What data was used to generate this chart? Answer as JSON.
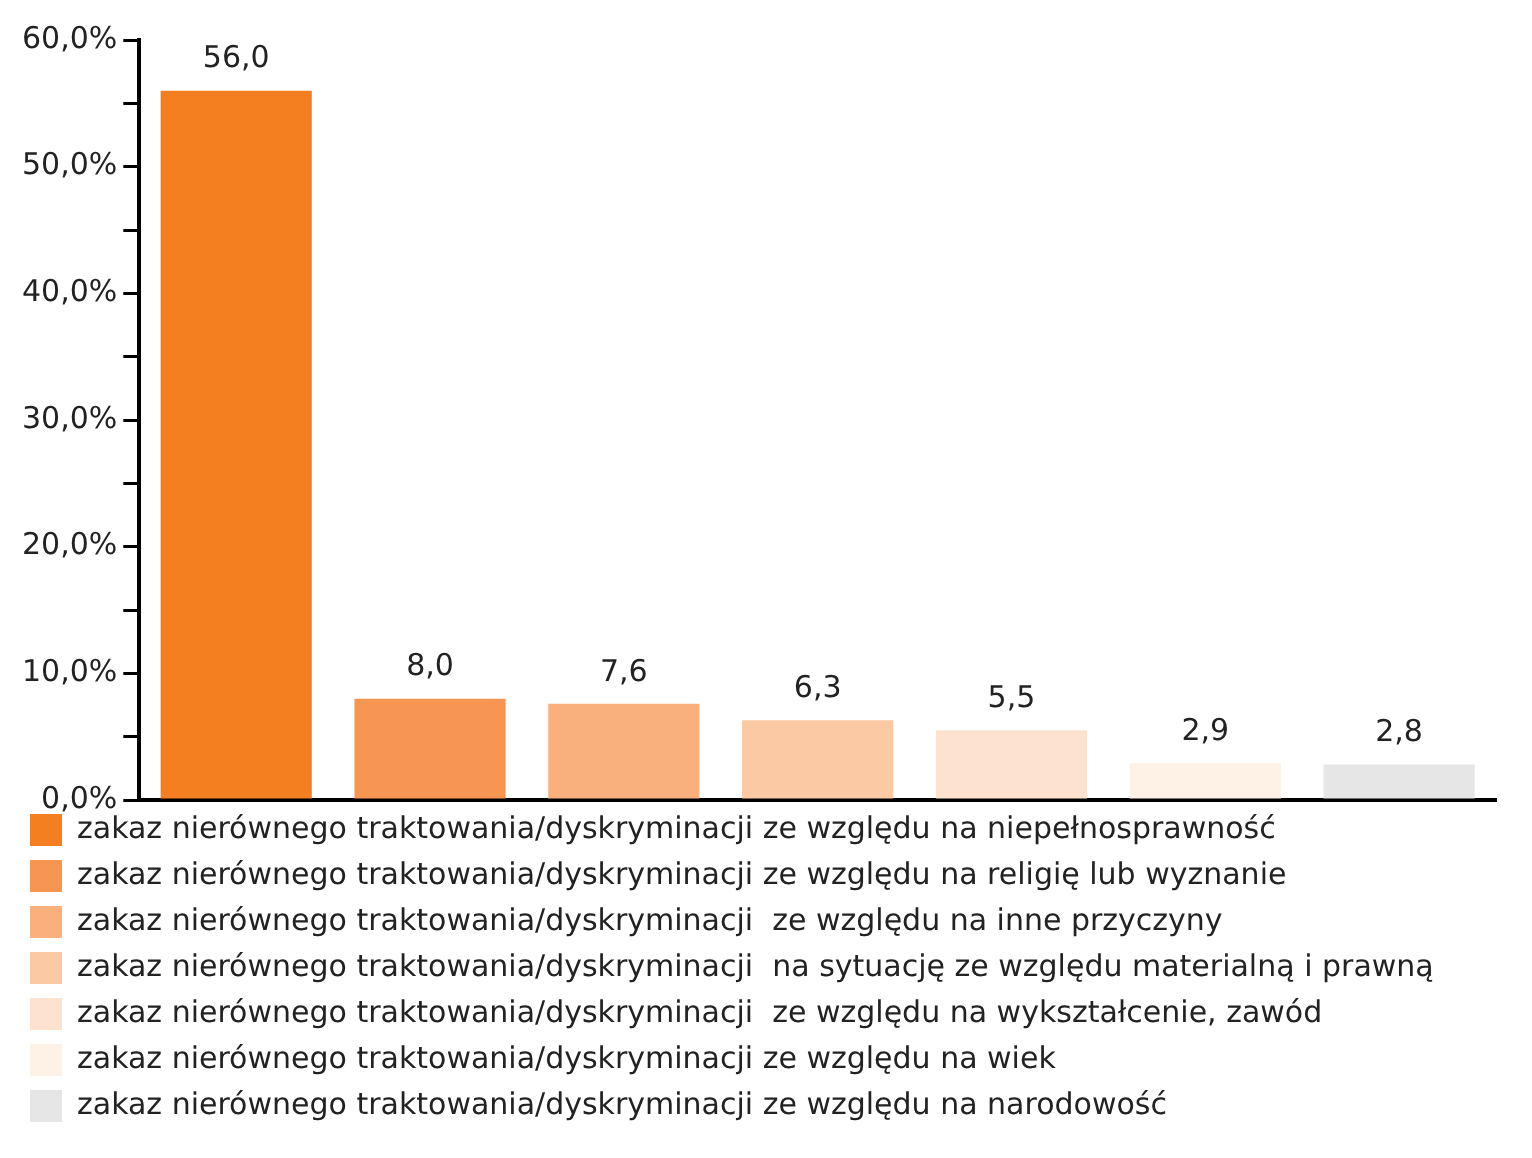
{
  "chart_data": {
    "type": "bar",
    "categories": [
      null,
      null,
      null,
      null,
      null,
      null,
      null
    ],
    "series": [
      {
        "name": "zakaz nierównego traktowania/dyskryminacji ze względu na niepełnosprawność",
        "color": "#f47f20",
        "values": [
          56.0,
          null,
          null,
          null,
          null,
          null,
          null
        ],
        "value_labels": [
          "56,0",
          null,
          null,
          null,
          null,
          null,
          null
        ]
      },
      {
        "name": "zakaz nierównego traktowania/dyskryminacji ze względu na religię lub wyznanie",
        "color": "#f79552",
        "values": [
          null,
          8.0,
          null,
          null,
          null,
          null,
          null
        ],
        "value_labels": [
          null,
          "8,0",
          null,
          null,
          null,
          null,
          null
        ]
      },
      {
        "name": "zakaz nierównego traktowania/dyskryminacji  ze względu na inne przyczyny",
        "color": "#f9b07c",
        "values": [
          null,
          null,
          7.6,
          null,
          null,
          null,
          null
        ],
        "value_labels": [
          null,
          null,
          "7,6",
          null,
          null,
          null,
          null
        ]
      },
      {
        "name": "zakaz nierównego traktowania/dyskryminacji  na sytuację ze względu materialną i prawną",
        "color": "#fbc9a3",
        "values": [
          null,
          null,
          null,
          6.3,
          null,
          null,
          null
        ],
        "value_labels": [
          null,
          null,
          null,
          "6,3",
          null,
          null,
          null
        ]
      },
      {
        "name": "zakaz nierównego traktowania/dyskryminacji  ze względu na wykształcenie, zawód",
        "color": "#fde3cf",
        "values": [
          null,
          null,
          null,
          null,
          5.5,
          null,
          null
        ],
        "value_labels": [
          null,
          null,
          null,
          null,
          "5,5",
          null,
          null
        ]
      },
      {
        "name": "zakaz nierównego traktowania/dyskryminacji ze względu na wiek",
        "color": "#fef1e6",
        "values": [
          null,
          null,
          null,
          null,
          null,
          2.9,
          null
        ],
        "value_labels": [
          null,
          null,
          null,
          null,
          null,
          "2,9",
          null
        ]
      },
      {
        "name": "zakaz nierównego traktowania/dyskryminacji ze względu na narodowość",
        "color": "#e6e6e6",
        "values": [
          null,
          null,
          null,
          null,
          null,
          null,
          2.8
        ],
        "value_labels": [
          null,
          null,
          null,
          null,
          null,
          null,
          "2,8"
        ]
      }
    ],
    "ylim": [
      0,
      60
    ],
    "yticks": [
      {
        "value": 0,
        "label": "0,0%"
      },
      {
        "value": 5,
        "label": null
      },
      {
        "value": 10,
        "label": "10,0%"
      },
      {
        "value": 15,
        "label": null
      },
      {
        "value": 20,
        "label": "20,0%"
      },
      {
        "value": 25,
        "label": null
      },
      {
        "value": 30,
        "label": "30,0%"
      },
      {
        "value": 35,
        "label": null
      },
      {
        "value": 40,
        "label": "40,0%"
      },
      {
        "value": 45,
        "label": null
      },
      {
        "value": 50,
        "label": "50,0%"
      },
      {
        "value": 55,
        "label": null
      },
      {
        "value": 60,
        "label": "60,0%"
      }
    ],
    "tick_labels": "y",
    "grid": false,
    "legend": "bottom"
  }
}
